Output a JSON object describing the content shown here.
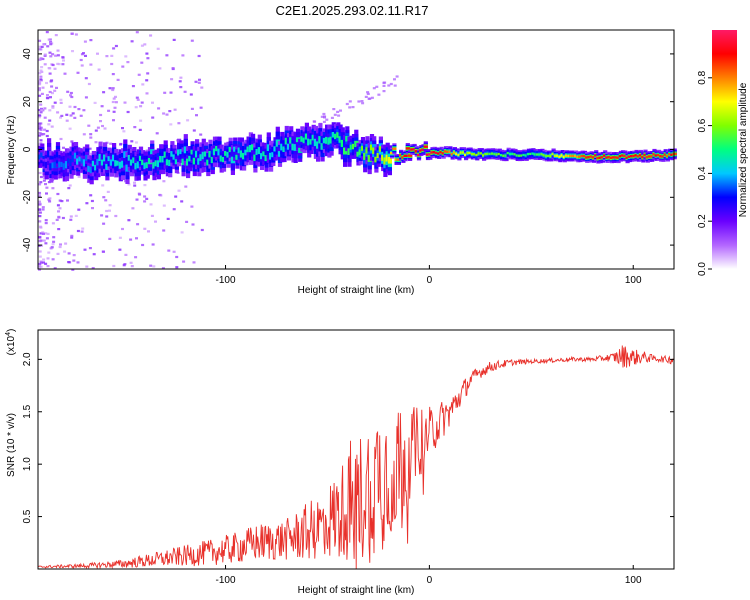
{
  "title": "C2E1.2025.293.02.11.R17",
  "chart_data": [
    {
      "type": "heatmap",
      "name": "spectrogram",
      "xlabel": "Height of straight line (km)",
      "ylabel": "Frequency (Hz)",
      "xlim": [
        -192,
        120
      ],
      "ylim": [
        -50,
        50
      ],
      "xticks": [
        "-100",
        "0",
        "100"
      ],
      "xtick_values": [
        -100,
        0,
        100
      ],
      "yticks": [
        "-40",
        "-20",
        "0",
        "20",
        "40"
      ],
      "ytick_values": [
        -40,
        -20,
        0,
        20,
        40
      ],
      "colorbar": {
        "label": "Normalized spectral amplitude",
        "range": [
          0,
          1
        ],
        "ticks": [
          "0.0",
          "0.2",
          "0.4",
          "0.6",
          "0.8"
        ],
        "tick_values": [
          0.0,
          0.2,
          0.4,
          0.6,
          0.8
        ],
        "colors": [
          "#ffffff",
          "#b366ff",
          "#6a00ff",
          "#0000ff",
          "#00c8ff",
          "#00ff80",
          "#80ff00",
          "#ffff00",
          "#ff8000",
          "#ff0000",
          "#ff1a66"
        ]
      },
      "ridge": {
        "x": [
          -192,
          -180,
          -160,
          -140,
          -120,
          -100,
          -80,
          -65,
          -55,
          -45,
          -35,
          -25,
          -15,
          -5,
          0,
          20,
          50,
          80,
          100,
          120
        ],
        "y": [
          -4,
          -5,
          -6,
          -4,
          -3,
          -2,
          -1,
          2,
          4,
          3,
          0,
          -2,
          -2,
          -2,
          -1,
          -2,
          -2,
          -3,
          -3,
          -2
        ],
        "amplitude": [
          0.3,
          0.35,
          0.4,
          0.45,
          0.45,
          0.45,
          0.45,
          0.45,
          0.45,
          0.5,
          0.55,
          0.6,
          0.85,
          0.95,
          0.95,
          0.6,
          0.5,
          0.9,
          0.9,
          0.85
        ]
      }
    },
    {
      "type": "line",
      "name": "snr",
      "xlabel": "Height of straight line (km)",
      "ylabel": "SNR (10 * v/v)",
      "scale_label": "(x10",
      "scale_exp": "4",
      "scale_close": ")",
      "xlim": [
        -192,
        120
      ],
      "ylim": [
        0,
        2.28
      ],
      "xticks": [
        "-100",
        "0",
        "100"
      ],
      "xtick_values": [
        -100,
        0,
        100
      ],
      "yticks": [
        "0.5",
        "1.0",
        "1.5",
        "2.0"
      ],
      "ytick_values": [
        0.5,
        1.0,
        1.5,
        2.0
      ],
      "color": "#e8302a",
      "series": [
        {
          "name": "SNR",
          "x": [
            -192,
            -170,
            -150,
            -130,
            -110,
            -95,
            -85,
            -70,
            -60,
            -50,
            -42,
            -36,
            -30,
            -25,
            -20,
            -15,
            -10,
            -5,
            0,
            5,
            10,
            15,
            20,
            25,
            30,
            40,
            50,
            60,
            70,
            80,
            90,
            95,
            100,
            105,
            110,
            115,
            120
          ],
          "y": [
            0.02,
            0.03,
            0.05,
            0.1,
            0.15,
            0.2,
            0.25,
            0.28,
            0.35,
            0.45,
            0.55,
            0.65,
            0.75,
            0.85,
            0.95,
            1.0,
            1.1,
            1.2,
            1.3,
            1.4,
            1.5,
            1.65,
            1.8,
            1.88,
            1.93,
            1.97,
            1.98,
            1.99,
            2.0,
            2.0,
            2.02,
            2.03,
            2.02,
            2.02,
            2.01,
            2.0,
            2.0
          ],
          "noise": [
            0.01,
            0.02,
            0.04,
            0.08,
            0.12,
            0.15,
            0.18,
            0.2,
            0.28,
            0.35,
            0.5,
            0.6,
            0.7,
            0.75,
            0.7,
            0.6,
            0.45,
            0.35,
            0.25,
            0.2,
            0.15,
            0.12,
            0.08,
            0.06,
            0.05,
            0.03,
            0.02,
            0.02,
            0.02,
            0.02,
            0.04,
            0.12,
            0.08,
            0.06,
            0.03,
            0.03,
            0.05
          ]
        }
      ]
    }
  ]
}
